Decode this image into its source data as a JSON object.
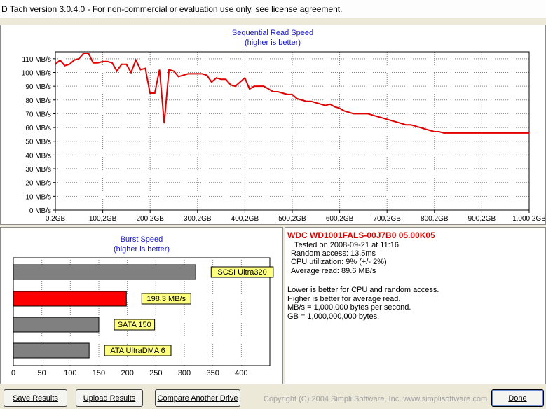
{
  "window": {
    "title": "D Tach version 3.0.4.0  -  For non-commercial or evaluation use only, see license agreement."
  },
  "colors": {
    "line": "#e00000",
    "title_blue": "#1414c8",
    "bar_gray": "#808080",
    "bar_red": "#ff0000",
    "label_yellow": "#ffff80"
  },
  "chart_data": [
    {
      "type": "line",
      "title": "Sequential Read Speed",
      "subtitle": "(higher is better)",
      "xlabel": "",
      "ylabel": "",
      "x_tick_labels": [
        "0,2GB",
        "100,2GB",
        "200,2GB",
        "300,2GB",
        "400,2GB",
        "500,2GB",
        "600,2GB",
        "700,2GB",
        "800,2GB",
        "900,2GB",
        "1.000,2GB"
      ],
      "y_tick_labels": [
        "0 MB/s",
        "10 MB/s",
        "20 MB/s",
        "30 MB/s",
        "40 MB/s",
        "50 MB/s",
        "60 MB/s",
        "70 MB/s",
        "80 MB/s",
        "90 MB/s",
        "100 MB/s",
        "110 MB/s"
      ],
      "xlim": [
        0.2,
        1000.2
      ],
      "ylim": [
        0,
        115
      ],
      "grid": true,
      "series": [
        {
          "x": [
            0.2,
            10,
            20,
            30,
            40,
            50,
            60,
            70,
            80,
            90,
            100,
            110,
            120,
            130,
            140,
            150,
            160,
            170,
            180,
            190,
            200,
            210,
            220,
            230,
            240,
            250,
            260,
            270,
            280,
            290,
            300,
            310,
            320,
            330,
            340,
            350,
            360,
            370,
            380,
            390,
            400,
            410,
            420,
            430,
            440,
            450,
            460,
            470,
            480,
            490,
            500,
            510,
            520,
            530,
            540,
            550,
            560,
            570,
            580,
            590,
            600,
            610,
            620,
            630,
            640,
            650,
            660,
            670,
            680,
            690,
            700,
            710,
            720,
            730,
            740,
            750,
            760,
            770,
            780,
            790,
            800,
            810,
            820,
            830,
            840,
            850,
            860,
            870,
            880,
            890,
            900,
            910,
            920,
            930,
            940,
            950,
            960,
            970,
            980,
            990,
            1000.2
          ],
          "y": [
            106,
            109,
            105,
            106,
            109,
            110,
            114,
            114,
            107,
            107,
            108,
            108,
            107,
            101,
            106,
            106,
            100,
            109,
            102,
            103,
            85,
            85,
            102,
            63,
            102,
            101,
            97,
            98,
            99,
            99,
            99,
            99,
            98,
            93,
            96,
            95,
            95,
            91,
            90,
            93,
            96,
            88,
            90,
            90,
            90,
            88,
            86,
            86,
            85,
            84,
            84,
            81,
            80,
            79,
            79,
            78,
            77,
            76,
            77,
            75,
            74,
            72,
            71,
            70,
            70,
            70,
            70,
            69,
            68,
            67,
            66,
            65,
            64,
            63,
            62,
            62,
            61,
            60,
            59,
            58,
            57,
            57,
            56,
            56,
            56,
            56,
            56,
            56,
            56,
            56,
            56,
            56,
            56,
            56,
            56,
            56,
            56,
            56,
            56,
            56,
            56
          ]
        }
      ]
    },
    {
      "type": "bar",
      "orientation": "horizontal",
      "title": "Burst Speed",
      "subtitle": "(higher is better)",
      "x_tick_labels": [
        "0",
        "50",
        "100",
        "150",
        "200",
        "250",
        "300",
        "350",
        "400"
      ],
      "xlim": [
        0,
        450
      ],
      "grid": true,
      "bars": [
        {
          "label": "SCSI Ultra320",
          "value": 320,
          "color": "#808080"
        },
        {
          "label": "198.3 MB/s",
          "value": 198.3,
          "color": "#ff0000"
        },
        {
          "label": "SATA 150",
          "value": 150,
          "color": "#808080"
        },
        {
          "label": "ATA UltraDMA 6",
          "value": 133,
          "color": "#808080"
        }
      ]
    }
  ],
  "info": {
    "drive": "WDC WD1001FALS-00J7B0 05.00K05",
    "tested": "Tested on 2008-09-21 at 11:16",
    "random_access": "Random access: 13.5ms",
    "cpu": "CPU utilization: 9% (+/- 2%)",
    "average_read": "Average read: 89.6 MB/s",
    "note1": "Lower is better for CPU and random access.",
    "note2": "Higher is better for average read.",
    "note3": "MB/s = 1,000,000 bytes per second.",
    "note4": "GB = 1,000,000,000 bytes."
  },
  "buttons": {
    "save": "Save Results",
    "upload": "Upload Results",
    "compare": "Compare Another Drive",
    "done": "Done"
  },
  "footer": {
    "copyright": "Copyright (C) 2004 Simpli Software, Inc. www.simplisoftware.com"
  }
}
